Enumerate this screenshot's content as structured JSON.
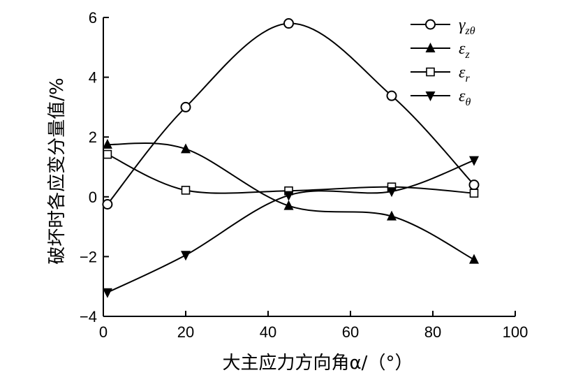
{
  "chart_data": {
    "type": "line",
    "xlabel": "大主应力方向角α/（°）",
    "ylabel": "破坏时各应变分量值/%",
    "xlim": [
      0,
      100
    ],
    "ylim": [
      -4,
      6
    ],
    "x_ticks": [
      "0",
      "20",
      "40",
      "60",
      "80",
      "100"
    ],
    "y_ticks": [
      "−4",
      "−2",
      "0",
      "2",
      "4",
      "6"
    ],
    "x": [
      1,
      20,
      45,
      70,
      90
    ],
    "grid": false,
    "legend_position": "top-right",
    "series": [
      {
        "name": "γzθ",
        "name_main": "γ",
        "name_sub": "zθ",
        "marker": "circle-open",
        "values": [
          -0.25,
          3.0,
          5.8,
          3.38,
          0.4
        ]
      },
      {
        "name": "εz",
        "name_main": "ε",
        "name_sub": "z",
        "marker": "triangle-up-filled",
        "values": [
          1.75,
          1.6,
          -0.3,
          -0.65,
          -2.1
        ]
      },
      {
        "name": "εr",
        "name_main": "ε",
        "name_sub": "r",
        "marker": "square-open",
        "values": [
          1.42,
          0.22,
          0.2,
          0.33,
          0.12
        ]
      },
      {
        "name": "εθ",
        "name_main": "ε",
        "name_sub": "θ",
        "marker": "triangle-down-filled",
        "values": [
          -3.2,
          -1.95,
          0.05,
          0.18,
          1.22
        ]
      }
    ]
  }
}
